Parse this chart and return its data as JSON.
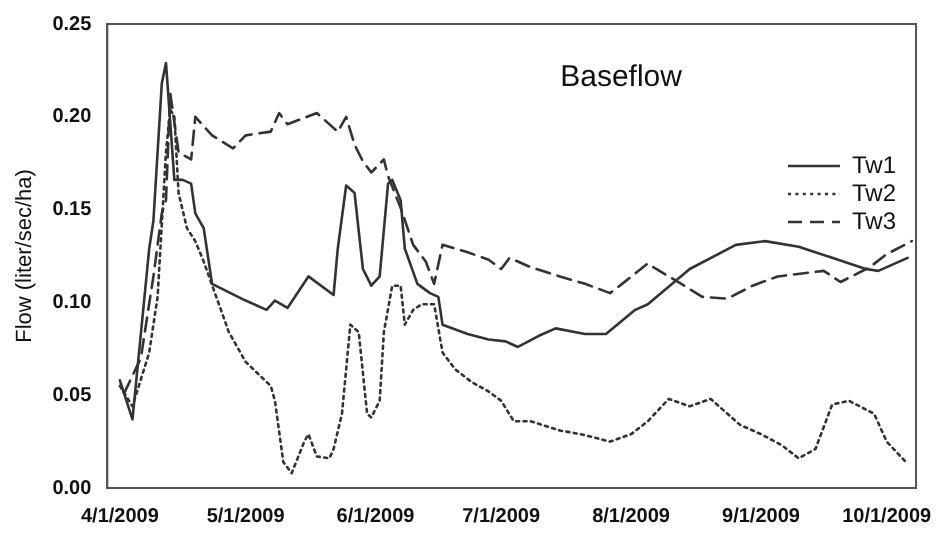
{
  "chart_data": {
    "type": "line",
    "title": "Baseflow",
    "ylabel": "Flow (liter/sec/ha)",
    "xlim": [
      "2009-03-29",
      "2009-10-08"
    ],
    "xticks": [
      {
        "value": "2009-04-01",
        "label": "4/1/2009"
      },
      {
        "value": "2009-05-01",
        "label": "5/1/2009"
      },
      {
        "value": "2009-06-01",
        "label": "6/1/2009"
      },
      {
        "value": "2009-07-01",
        "label": "7/1/2009"
      },
      {
        "value": "2009-08-01",
        "label": "8/1/2009"
      },
      {
        "value": "2009-09-01",
        "label": "9/1/2009"
      },
      {
        "value": "2009-10-01",
        "label": "10/1/2009"
      }
    ],
    "ylim": [
      0,
      0.25
    ],
    "yticks": [
      {
        "value": 0,
        "label": "0.00"
      },
      {
        "value": 0.05,
        "label": "0.05"
      },
      {
        "value": 0.1,
        "label": "0.10"
      },
      {
        "value": 0.15,
        "label": "0.15"
      },
      {
        "value": 0.2,
        "label": "0.20"
      },
      {
        "value": 0.25,
        "label": "0.25"
      }
    ],
    "grid": false,
    "legend": "top right",
    "marker": "none",
    "series": [
      {
        "name": "Tw1",
        "color": "#333333",
        "line_style": "solid",
        "x": [
          "2009-04-01",
          "2009-04-04",
          "2009-04-08",
          "2009-04-09",
          "2009-04-11",
          "2009-04-12",
          "2009-04-14",
          "2009-04-16",
          "2009-04-18",
          "2009-04-19",
          "2009-04-21",
          "2009-04-23",
          "2009-05-01",
          "2009-05-06",
          "2009-05-08",
          "2009-05-11",
          "2009-05-16",
          "2009-05-22",
          "2009-05-23",
          "2009-05-25",
          "2009-05-27",
          "2009-05-29",
          "2009-05-31",
          "2009-06-02",
          "2009-06-04",
          "2009-06-05",
          "2009-06-07",
          "2009-06-08",
          "2009-06-11",
          "2009-06-14",
          "2009-06-16",
          "2009-06-17",
          "2009-06-23",
          "2009-06-28",
          "2009-07-02",
          "2009-07-05",
          "2009-07-10",
          "2009-07-14",
          "2009-07-21",
          "2009-07-26",
          "2009-08-02",
          "2009-08-05",
          "2009-08-15",
          "2009-08-26",
          "2009-09-02",
          "2009-09-10",
          "2009-09-18",
          "2009-09-26",
          "2009-09-29",
          "2009-10-06"
        ],
        "values": [
          0.058,
          0.037,
          0.129,
          0.144,
          0.218,
          0.229,
          0.166,
          0.166,
          0.164,
          0.148,
          0.14,
          0.11,
          0.101,
          0.096,
          0.101,
          0.097,
          0.114,
          0.104,
          0.129,
          0.163,
          0.159,
          0.118,
          0.109,
          0.114,
          0.164,
          0.166,
          0.155,
          0.129,
          0.11,
          0.105,
          0.103,
          0.088,
          0.083,
          0.08,
          0.079,
          0.076,
          0.082,
          0.086,
          0.083,
          0.083,
          0.096,
          0.099,
          0.118,
          0.131,
          0.133,
          0.13,
          0.124,
          0.118,
          0.117,
          0.124
        ]
      },
      {
        "name": "Tw2",
        "color": "#333333",
        "line_style": "dotted",
        "x": [
          "2009-04-01",
          "2009-04-04",
          "2009-04-08",
          "2009-04-10",
          "2009-04-12",
          "2009-04-13",
          "2009-04-14",
          "2009-04-15",
          "2009-04-17",
          "2009-04-19",
          "2009-04-21",
          "2009-04-24",
          "2009-04-27",
          "2009-05-01",
          "2009-05-07",
          "2009-05-08",
          "2009-05-10",
          "2009-05-12",
          "2009-05-15",
          "2009-05-16",
          "2009-05-18",
          "2009-05-21",
          "2009-05-22",
          "2009-05-24",
          "2009-05-26",
          "2009-05-28",
          "2009-05-29",
          "2009-05-30",
          "2009-05-31",
          "2009-06-02",
          "2009-06-03",
          "2009-06-05",
          "2009-06-07",
          "2009-06-08",
          "2009-06-10",
          "2009-06-12",
          "2009-06-15",
          "2009-06-17",
          "2009-06-20",
          "2009-06-24",
          "2009-06-28",
          "2009-07-01",
          "2009-07-04",
          "2009-07-08",
          "2009-07-15",
          "2009-07-20",
          "2009-07-27",
          "2009-08-01",
          "2009-08-05",
          "2009-08-10",
          "2009-08-15",
          "2009-08-20",
          "2009-08-27",
          "2009-09-01",
          "2009-09-06",
          "2009-09-10",
          "2009-09-14",
          "2009-09-18",
          "2009-09-22",
          "2009-09-28",
          "2009-10-01",
          "2009-10-06"
        ],
        "values": [
          0.055,
          0.044,
          0.073,
          0.103,
          0.181,
          0.204,
          0.2,
          0.159,
          0.14,
          0.133,
          0.122,
          0.103,
          0.084,
          0.068,
          0.055,
          0.047,
          0.014,
          0.008,
          0.025,
          0.029,
          0.017,
          0.016,
          0.021,
          0.04,
          0.088,
          0.084,
          0.062,
          0.04,
          0.038,
          0.047,
          0.084,
          0.109,
          0.109,
          0.088,
          0.096,
          0.099,
          0.099,
          0.073,
          0.064,
          0.057,
          0.052,
          0.047,
          0.036,
          0.036,
          0.031,
          0.029,
          0.025,
          0.029,
          0.036,
          0.048,
          0.044,
          0.048,
          0.034,
          0.029,
          0.023,
          0.016,
          0.021,
          0.045,
          0.047,
          0.04,
          0.025,
          0.013
        ]
      },
      {
        "name": "Tw3",
        "color": "#333333",
        "line_style": "dashed",
        "x": [
          "2009-04-02",
          "2009-04-06",
          "2009-04-09",
          "2009-04-11",
          "2009-04-12",
          "2009-04-13",
          "2009-04-15",
          "2009-04-18",
          "2009-04-19",
          "2009-04-23",
          "2009-04-28",
          "2009-05-01",
          "2009-05-07",
          "2009-05-09",
          "2009-05-11",
          "2009-05-18",
          "2009-05-23",
          "2009-05-25",
          "2009-05-27",
          "2009-05-29",
          "2009-05-31",
          "2009-06-03",
          "2009-06-04",
          "2009-06-07",
          "2009-06-10",
          "2009-06-13",
          "2009-06-15",
          "2009-06-17",
          "2009-06-23",
          "2009-06-28",
          "2009-07-01",
          "2009-07-03",
          "2009-07-08",
          "2009-07-15",
          "2009-07-21",
          "2009-07-27",
          "2009-07-31",
          "2009-08-05",
          "2009-08-07",
          "2009-08-13",
          "2009-08-18",
          "2009-08-24",
          "2009-08-30",
          "2009-09-05",
          "2009-09-16",
          "2009-09-20",
          "2009-09-27",
          "2009-10-01",
          "2009-10-07"
        ],
        "values": [
          0.051,
          0.07,
          0.114,
          0.148,
          0.155,
          0.213,
          0.181,
          0.177,
          0.2,
          0.19,
          0.183,
          0.19,
          0.192,
          0.202,
          0.196,
          0.202,
          0.192,
          0.2,
          0.185,
          0.176,
          0.17,
          0.177,
          0.168,
          0.151,
          0.131,
          0.122,
          0.11,
          0.131,
          0.127,
          0.123,
          0.118,
          0.124,
          0.119,
          0.114,
          0.11,
          0.105,
          0.112,
          0.121,
          0.118,
          0.11,
          0.103,
          0.102,
          0.109,
          0.114,
          0.117,
          0.111,
          0.119,
          0.126,
          0.133
        ]
      }
    ]
  }
}
